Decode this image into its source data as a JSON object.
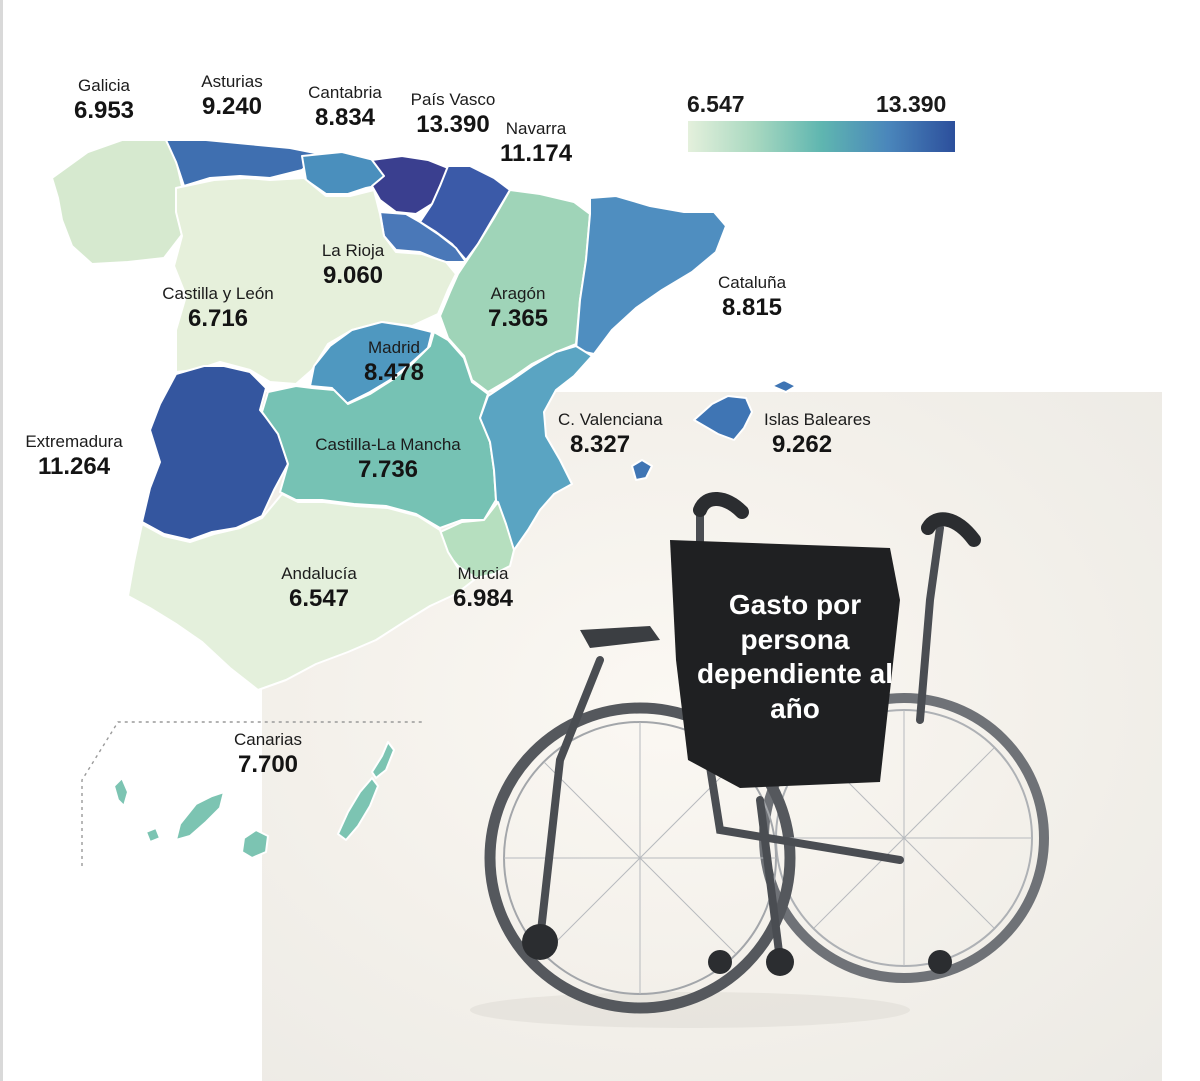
{
  "title": "Gasto por persona dependiente al año",
  "legend": {
    "min_label": "6.547",
    "max_label": "13.390",
    "min_value": 6547,
    "max_value": 13390,
    "color_low": "#e4f0dc",
    "color_high": "#2c4f9c"
  },
  "regions": [
    {
      "key": "galicia",
      "name": "Galicia",
      "value_label": "6.953",
      "value": 6953,
      "color": "#d6e9cf"
    },
    {
      "key": "asturias",
      "name": "Asturias",
      "value_label": "9.240",
      "value": 9240,
      "color": "#3f6fb0"
    },
    {
      "key": "cantabria",
      "name": "Cantabria",
      "value_label": "8.834",
      "value": 8834,
      "color": "#4a8fbd"
    },
    {
      "key": "pais_vasco",
      "name": "País Vasco",
      "value_label": "13.390",
      "value": 13390,
      "color": "#3a3f8f"
    },
    {
      "key": "navarra",
      "name": "Navarra",
      "value_label": "11.174",
      "value": 11174,
      "color": "#3b5aa8"
    },
    {
      "key": "la_rioja",
      "name": "La Rioja",
      "value_label": "9.060",
      "value": 9060,
      "color": "#4a78b8"
    },
    {
      "key": "castilla_leon",
      "name": "Castilla y León",
      "value_label": "6.716",
      "value": 6716,
      "color": "#e6f0db"
    },
    {
      "key": "aragon",
      "name": "Aragón",
      "value_label": "7.365",
      "value": 7365,
      "color": "#9fd4b8"
    },
    {
      "key": "cataluna",
      "name": "Cataluña",
      "value_label": "8.815",
      "value": 8815,
      "color": "#4f8ec0"
    },
    {
      "key": "madrid",
      "name": "Madrid",
      "value_label": "8.478",
      "value": 8478,
      "color": "#4f98c0"
    },
    {
      "key": "extremadura",
      "name": "Extremadura",
      "value_label": "11.264",
      "value": 11264,
      "color": "#34569f"
    },
    {
      "key": "castilla_la_mancha",
      "name": "Castilla-La Mancha",
      "value_label": "7.736",
      "value": 7736,
      "color": "#76c2b4"
    },
    {
      "key": "c_valenciana",
      "name": "C. Valenciana",
      "value_label": "8.327",
      "value": 8327,
      "color": "#5aa4c2"
    },
    {
      "key": "islas_baleares",
      "name": "Islas Baleares",
      "value_label": "9.262",
      "value": 9262,
      "color": "#3f75b4"
    },
    {
      "key": "andalucia",
      "name": "Andalucía",
      "value_label": "6.547",
      "value": 6547,
      "color": "#e4f0dc"
    },
    {
      "key": "murcia",
      "name": "Murcia",
      "value_label": "6.984",
      "value": 6984,
      "color": "#b6dfbf"
    },
    {
      "key": "canarias",
      "name": "Canarias",
      "value_label": "7.700",
      "value": 7700,
      "color": "#7cc4b2"
    }
  ],
  "icons": {
    "wheelchair": "wheelchair-photo"
  },
  "colors": {
    "border": "#ffffff",
    "inset_border": "#9a9a9a"
  }
}
